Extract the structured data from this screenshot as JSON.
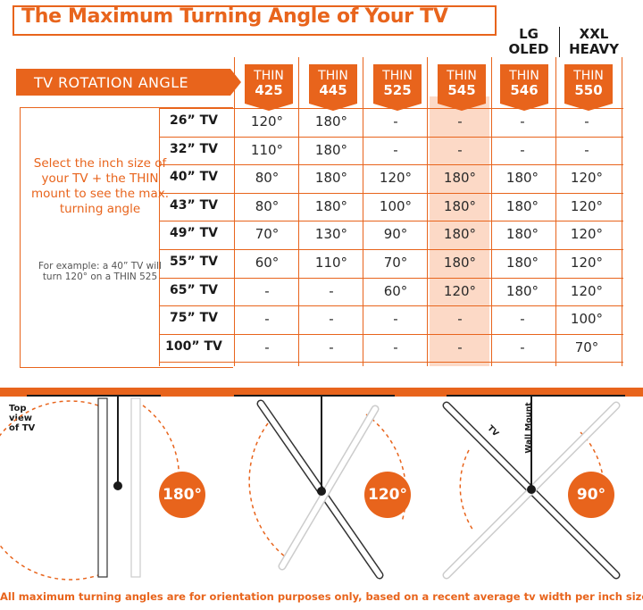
{
  "title": "The Maximum Turning Angle of Your TV",
  "extra_headers": {
    "lg": "LG\nOLED",
    "xxl": "XXL\nHEAVY"
  },
  "rotation_header": "TV ROTATION ANGLE",
  "columns": [
    {
      "top": "THIN",
      "model": "425"
    },
    {
      "top": "THIN",
      "model": "445"
    },
    {
      "top": "THIN",
      "model": "525"
    },
    {
      "top": "THIN",
      "model": "545"
    },
    {
      "top": "THIN",
      "model": "546"
    },
    {
      "top": "THIN",
      "model": "550"
    }
  ],
  "rows": [
    {
      "label": "26” TV",
      "values": [
        "120°",
        "180°",
        "-",
        "-",
        "-",
        "-"
      ]
    },
    {
      "label": "32” TV",
      "values": [
        "110°",
        "180°",
        "-",
        "-",
        "-",
        "-"
      ]
    },
    {
      "label": "40” TV",
      "values": [
        "80°",
        "180°",
        "120°",
        "180°",
        "180°",
        "120°"
      ]
    },
    {
      "label": "43” TV",
      "values": [
        "80°",
        "180°",
        "100°",
        "180°",
        "180°",
        "120°"
      ]
    },
    {
      "label": "49” TV",
      "values": [
        "70°",
        "130°",
        "90°",
        "180°",
        "180°",
        "120°"
      ]
    },
    {
      "label": "55” TV",
      "values": [
        "60°",
        "110°",
        "70°",
        "180°",
        "180°",
        "120°"
      ]
    },
    {
      "label": "65” TV",
      "values": [
        "-",
        "-",
        "60°",
        "120°",
        "180°",
        "120°"
      ]
    },
    {
      "label": "75” TV",
      "values": [
        "-",
        "-",
        "-",
        "-",
        "-",
        "100°"
      ]
    },
    {
      "label": "100” TV",
      "values": [
        "-",
        "-",
        "-",
        "-",
        "-",
        "70°"
      ]
    }
  ],
  "hint": "Select the inch size of your TV + the THIN mount to see the max. turning angle",
  "example": "For example: a 40” TV will turn 120° on a THIN 525",
  "diagram": {
    "top_view_label": "Top view of TV",
    "tv_label": "TV",
    "wall_mount_label": "Wall Mount",
    "angles": [
      "180°",
      "120°",
      "90°"
    ]
  },
  "footer": "All maximum turning angles are for orientation purposes only, based on a recent average tv width per inch size",
  "colors": {
    "accent": "#e8641c",
    "highlight": "#fcd9c6"
  }
}
